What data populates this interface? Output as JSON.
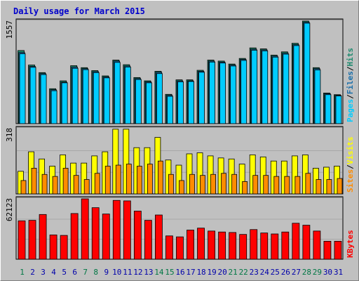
{
  "title": "Daily usage for March 2015",
  "colors": {
    "hits": "#1f8a6f",
    "files": "#1a6faa",
    "pages": "#00ccff",
    "visits": "#ffff00",
    "sites": "#ff8c00",
    "kbytes": "#ff0000",
    "title": "#0000cc",
    "weekday_label": "#0000aa",
    "weekend_label": "#007744"
  },
  "chart_data": [
    {
      "type": "bar",
      "panel": "top",
      "axis_label": "1557",
      "ylim": [
        0,
        1557
      ],
      "legend": [
        "Pages",
        "Files",
        "Hits"
      ],
      "categories": [
        "1",
        "2",
        "3",
        "4",
        "5",
        "6",
        "7",
        "8",
        "9",
        "10",
        "11",
        "12",
        "13",
        "14",
        "15",
        "16",
        "17",
        "18",
        "19",
        "20",
        "21",
        "22",
        "23",
        "24",
        "25",
        "26",
        "27",
        "28",
        "29",
        "30",
        "31"
      ],
      "series": [
        {
          "name": "Hits",
          "values": [
            1110,
            890,
            775,
            530,
            650,
            880,
            850,
            805,
            725,
            965,
            895,
            700,
            650,
            795,
            445,
            665,
            665,
            810,
            965,
            950,
            905,
            990,
            1150,
            1135,
            1040,
            1090,
            1220,
            1557,
            850,
            465,
            440
          ]
        },
        {
          "name": "Files",
          "values": [
            1080,
            870,
            760,
            515,
            630,
            860,
            835,
            790,
            710,
            950,
            875,
            685,
            635,
            780,
            430,
            650,
            650,
            795,
            950,
            935,
            890,
            975,
            1130,
            1120,
            1025,
            1070,
            1200,
            1540,
            835,
            455,
            430
          ]
        },
        {
          "name": "Pages",
          "values": [
            1060,
            855,
            745,
            500,
            620,
            840,
            820,
            775,
            695,
            930,
            860,
            670,
            620,
            760,
            415,
            635,
            640,
            780,
            935,
            920,
            875,
            960,
            1115,
            1105,
            1010,
            1055,
            1185,
            1525,
            815,
            440,
            420
          ]
        }
      ]
    },
    {
      "type": "bar",
      "panel": "middle",
      "axis_label": "318",
      "ylim": [
        0,
        318
      ],
      "legend": [
        "Sites",
        "Visits"
      ],
      "categories": [
        "1",
        "2",
        "3",
        "4",
        "5",
        "6",
        "7",
        "8",
        "9",
        "10",
        "11",
        "12",
        "13",
        "14",
        "15",
        "16",
        "17",
        "18",
        "19",
        "20",
        "21",
        "22",
        "23",
        "24",
        "25",
        "26",
        "27",
        "28",
        "29",
        "30",
        "31"
      ],
      "series": [
        {
          "name": "Visits",
          "values": [
            110,
            205,
            170,
            135,
            190,
            150,
            150,
            185,
            205,
            315,
            315,
            225,
            225,
            275,
            165,
            140,
            195,
            200,
            185,
            175,
            170,
            145,
            190,
            180,
            160,
            160,
            185,
            190,
            125,
            130,
            135
          ]
        },
        {
          "name": "Sites",
          "values": [
            65,
            125,
            95,
            85,
            125,
            90,
            70,
            100,
            135,
            140,
            145,
            135,
            145,
            160,
            95,
            65,
            95,
            90,
            95,
            100,
            95,
            60,
            90,
            90,
            85,
            85,
            85,
            100,
            70,
            70,
            75
          ]
        }
      ]
    },
    {
      "type": "bar",
      "panel": "bottom",
      "axis_label": "62123",
      "ylim": [
        0,
        62123
      ],
      "legend": [
        "KBytes"
      ],
      "categories": [
        "1",
        "2",
        "3",
        "4",
        "5",
        "6",
        "7",
        "8",
        "9",
        "10",
        "11",
        "12",
        "13",
        "14",
        "15",
        "16",
        "17",
        "18",
        "19",
        "20",
        "21",
        "22",
        "23",
        "24",
        "25",
        "26",
        "27",
        "28",
        "29",
        "30",
        "31"
      ],
      "series": [
        {
          "name": "KBytes",
          "values": [
            39500,
            40000,
            46000,
            25000,
            24500,
            47000,
            62100,
            53000,
            46500,
            60500,
            60000,
            49500,
            40000,
            45500,
            24000,
            23000,
            30000,
            32000,
            29000,
            28000,
            27500,
            25500,
            30500,
            27000,
            26000,
            28000,
            37000,
            35000,
            29000,
            18500,
            18500
          ]
        }
      ]
    }
  ],
  "weekend_days": [
    "1",
    "7",
    "8",
    "14",
    "15",
    "21",
    "22",
    "28",
    "29"
  ]
}
